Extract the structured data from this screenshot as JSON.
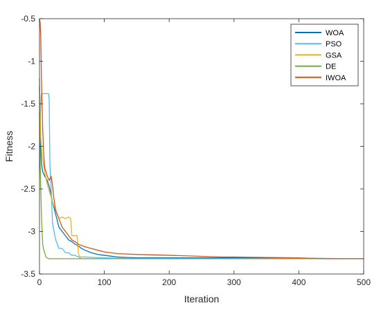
{
  "chart_data": {
    "type": "line",
    "title": "",
    "xlabel": "Iteration",
    "ylabel": "Fitness",
    "xlim": [
      0,
      500
    ],
    "ylim": [
      -3.5,
      -0.5
    ],
    "xticks": [
      0,
      100,
      200,
      300,
      400,
      500
    ],
    "xtick_labels": [
      "0",
      "100",
      "200",
      "300",
      "400",
      "500"
    ],
    "yticks": [
      -0.5,
      -1,
      -1.5,
      -2,
      -2.5,
      -3,
      -3.5
    ],
    "ytick_labels": [
      "-0.5",
      "-1",
      "-1.5",
      "-2",
      "-2.5",
      "-3",
      "-3.5"
    ],
    "grid": false,
    "legend_position": "top-right",
    "series": [
      {
        "name": "WOA",
        "color": "#0072BD",
        "x": [
          0,
          1,
          3,
          5,
          8,
          12,
          16,
          20,
          25,
          30,
          35,
          40,
          45,
          50,
          55,
          60,
          65,
          70,
          80,
          90,
          100,
          120,
          150,
          200,
          300,
          400,
          500
        ],
        "y": [
          -1.3,
          -1.9,
          -2.2,
          -2.3,
          -2.35,
          -2.4,
          -2.5,
          -2.65,
          -2.8,
          -2.95,
          -3.0,
          -3.05,
          -3.1,
          -3.12,
          -3.15,
          -3.17,
          -3.2,
          -3.22,
          -3.25,
          -3.27,
          -3.28,
          -3.3,
          -3.31,
          -3.31,
          -3.31,
          -3.315,
          -3.32
        ]
      },
      {
        "name": "PSO",
        "color": "#4DBEEE",
        "x": [
          0,
          1,
          2,
          3,
          5,
          10,
          14,
          15,
          16,
          18,
          20,
          25,
          30,
          35,
          40,
          45,
          50,
          55,
          60,
          70,
          100,
          150,
          500
        ],
        "y": [
          -2.25,
          -1.8,
          -1.5,
          -1.38,
          -1.38,
          -1.38,
          -1.38,
          -1.45,
          -2.2,
          -2.5,
          -2.9,
          -3.1,
          -3.2,
          -3.2,
          -3.25,
          -3.25,
          -3.28,
          -3.28,
          -3.3,
          -3.3,
          -3.31,
          -3.32,
          -3.32
        ]
      },
      {
        "name": "GSA",
        "color": "#EDB120",
        "x": [
          0,
          1,
          2,
          4,
          6,
          8,
          12,
          16,
          20,
          25,
          30,
          35,
          40,
          45,
          48,
          50,
          55,
          58,
          60,
          62,
          65,
          100,
          500
        ],
        "y": [
          -1.2,
          -1.6,
          -1.9,
          -2.1,
          -2.2,
          -2.3,
          -2.45,
          -2.55,
          -2.65,
          -2.75,
          -2.85,
          -2.83,
          -2.85,
          -2.83,
          -2.85,
          -3.05,
          -3.05,
          -3.05,
          -3.25,
          -3.31,
          -3.32,
          -3.32,
          -3.32
        ]
      },
      {
        "name": "DE",
        "color": "#77AC30",
        "x": [
          0,
          1,
          2,
          3,
          4,
          5,
          6,
          8,
          10,
          12,
          14,
          500
        ],
        "y": [
          -1.6,
          -2.2,
          -2.5,
          -2.8,
          -3.0,
          -3.15,
          -3.2,
          -3.25,
          -3.3,
          -3.31,
          -3.32,
          -3.32
        ]
      },
      {
        "name": "IWOA",
        "color": "#D95319",
        "x": [
          0,
          1,
          2,
          3,
          4,
          5,
          6,
          7,
          8,
          10,
          12,
          15,
          18,
          20,
          22,
          25,
          30,
          35,
          40,
          45,
          50,
          55,
          60,
          70,
          80,
          90,
          100,
          120,
          150,
          200,
          280,
          300,
          400,
          440,
          500
        ],
        "y": [
          -0.5,
          -0.55,
          -0.7,
          -1.2,
          -1.5,
          -1.8,
          -2.0,
          -2.15,
          -2.25,
          -2.3,
          -2.35,
          -2.4,
          -2.35,
          -2.45,
          -2.6,
          -2.75,
          -2.85,
          -2.95,
          -3.0,
          -3.05,
          -3.1,
          -3.12,
          -3.15,
          -3.18,
          -3.2,
          -3.22,
          -3.24,
          -3.26,
          -3.27,
          -3.28,
          -3.3,
          -3.3,
          -3.31,
          -3.32,
          -3.32
        ]
      }
    ]
  }
}
